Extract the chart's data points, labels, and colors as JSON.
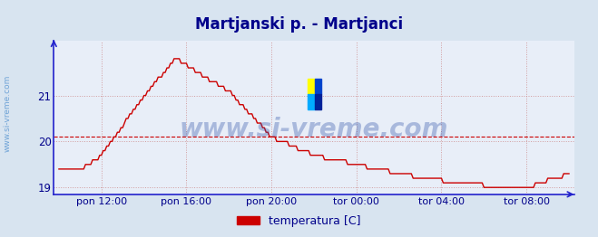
{
  "title": "Martjanski p. - Martjanci",
  "title_color": "#00008B",
  "title_fontsize": 12,
  "background_color": "#d8e4f0",
  "plot_bg_color": "#e8eef8",
  "line_color": "#cc0000",
  "line_width": 1.0,
  "yticks": [
    19,
    20,
    21
  ],
  "ylim": [
    18.85,
    22.2
  ],
  "grid_color": "#cc8888",
  "grid_linestyle": ":",
  "grid_linewidth": 0.7,
  "hline_color": "#cc0000",
  "hline_y": 20.1,
  "hline_style": "--",
  "axis_color": "#2222cc",
  "tick_color": "#00008B",
  "xtick_labels": [
    "pon 12:00",
    "pon 16:00",
    "pon 20:00",
    "tor 00:00",
    "tor 04:00",
    "tor 08:00"
  ],
  "watermark": "www.si-vreme.com",
  "watermark_color": "#3355aa",
  "watermark_alpha": 0.35,
  "watermark_fontsize": 20,
  "legend_label": "temperatura [C]",
  "legend_color": "#cc0000",
  "sidewatermark": "www.si-vreme.com",
  "sidewatermark_color": "#4488cc",
  "sidewatermark_alpha": 0.7,
  "logo_colors": [
    "#ffff00",
    "#0055dd",
    "#1133aa"
  ]
}
